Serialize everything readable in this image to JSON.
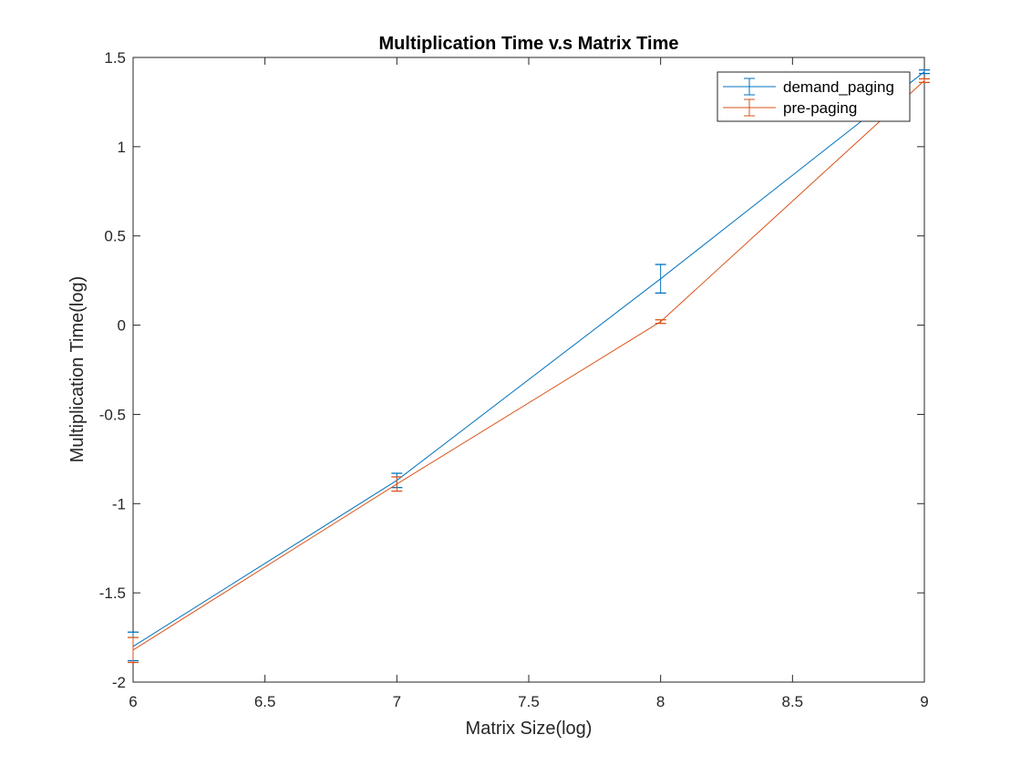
{
  "chart_data": {
    "type": "line",
    "title": "Multiplication Time v.s Matrix Time",
    "xlabel": "Matrix Size(log)",
    "ylabel": "Multiplication Time(log)",
    "xlim": [
      6,
      9
    ],
    "ylim": [
      -2,
      1.5
    ],
    "x_ticks": [
      "6",
      "6.5",
      "7",
      "7.5",
      "8",
      "8.5",
      "9"
    ],
    "y_ticks": [
      "1.5",
      "1",
      "0.5",
      "0",
      "-0.5",
      "-1",
      "-1.5",
      "-2"
    ],
    "x_tick_values": [
      6,
      6.5,
      7,
      7.5,
      8,
      8.5,
      9
    ],
    "y_tick_values": [
      1.5,
      1,
      0.5,
      0,
      -0.5,
      -1,
      -1.5,
      -2
    ],
    "grid": false,
    "legend_position": "top-right",
    "x": [
      6,
      7,
      8,
      9
    ],
    "series": [
      {
        "name": "demand_paging",
        "color": "#0072BD",
        "values": [
          -1.8,
          -0.87,
          0.26,
          1.42
        ],
        "error_low": [
          -1.88,
          -0.91,
          0.18,
          1.41
        ],
        "error_high": [
          -1.72,
          -0.83,
          0.34,
          1.43
        ]
      },
      {
        "name": "pre-paging",
        "color": "#D95319",
        "values": [
          -1.82,
          -0.89,
          0.02,
          1.37
        ],
        "error_low": [
          -1.89,
          -0.93,
          0.01,
          1.36
        ],
        "error_high": [
          -1.75,
          -0.85,
          0.03,
          1.38
        ]
      }
    ]
  }
}
